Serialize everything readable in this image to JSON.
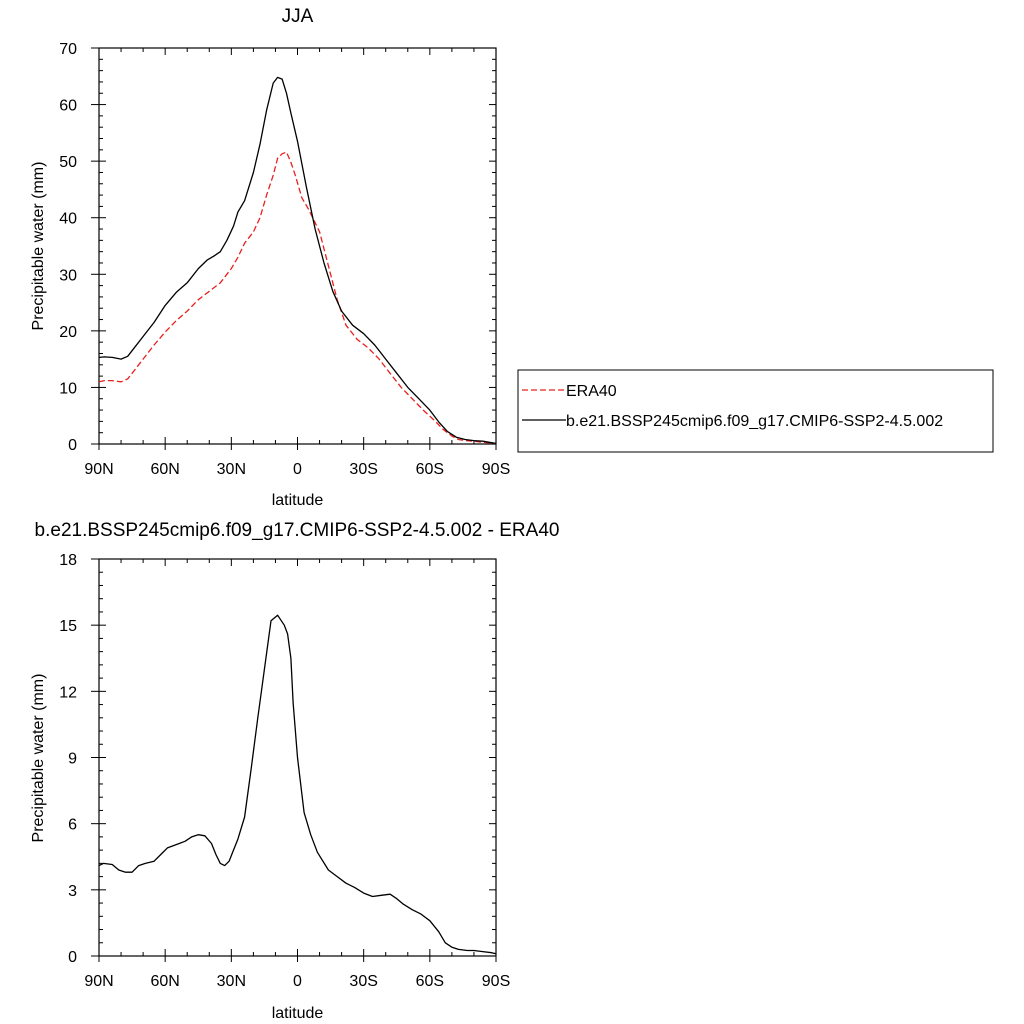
{
  "chart_data": [
    {
      "type": "line",
      "title": "JJA",
      "xlabel": "latitude",
      "ylabel": "Precipitable water (mm)",
      "xlim": [
        90,
        -90
      ],
      "ylim": [
        0,
        70
      ],
      "xticks": [
        90,
        60,
        30,
        0,
        -30,
        -60,
        -90
      ],
      "xtick_labels": [
        "90N",
        "60N",
        "30N",
        "0",
        "30S",
        "60S",
        "90S"
      ],
      "yticks": [
        0,
        10,
        20,
        30,
        40,
        50,
        60,
        70
      ],
      "ytick_labels": [
        "0",
        "10",
        "20",
        "30",
        "40",
        "50",
        "60",
        "70"
      ],
      "legend": {
        "placement": "right",
        "entries": [
          "ERA40",
          "b.e21.BSSP245cmip6.f09_g17.CMIP6-SSP2-4.5.002"
        ]
      },
      "series": [
        {
          "name": "ERA40",
          "color": "#e8201e",
          "dash": "dashed",
          "x": [
            90,
            87.5,
            84,
            80,
            77,
            74,
            70,
            65,
            60,
            55,
            50,
            45,
            40,
            35,
            30,
            27,
            24,
            20,
            17,
            14,
            11,
            9,
            7,
            5,
            3,
            1,
            -2,
            -5,
            -10,
            -14,
            -18,
            -22,
            -27,
            -32,
            -37,
            -42,
            -47,
            -52,
            -57,
            -62,
            -66,
            -70,
            -73,
            -76,
            -80,
            -84,
            -87,
            -90
          ],
          "y": [
            11,
            11.2,
            11.2,
            11,
            11.5,
            13,
            15,
            17.5,
            19.8,
            21.8,
            23.5,
            25.5,
            27,
            28.5,
            31,
            33,
            35.5,
            37.5,
            40,
            44,
            47.5,
            50.5,
            51.3,
            51.6,
            49.8,
            47.5,
            43.5,
            41.5,
            37.5,
            31.5,
            25.5,
            21,
            18.5,
            17,
            15,
            12.5,
            10,
            8,
            6,
            4.2,
            2.6,
            1.4,
            0.8,
            0.6,
            0.5,
            0.3,
            0.2,
            0.1
          ]
        },
        {
          "name": "b.e21.BSSP245cmip6.f09_g17.CMIP6-SSP2-4.5.002",
          "color": "#000000",
          "dash": "solid",
          "x": [
            90,
            87.5,
            84,
            80,
            77,
            74,
            70,
            65,
            60,
            55,
            50,
            45,
            41,
            38,
            35,
            32,
            29,
            27,
            24,
            20,
            17,
            14,
            11,
            9,
            7,
            5,
            3,
            0,
            -4,
            -8,
            -12,
            -16,
            -20,
            -25,
            -30,
            -35,
            -40,
            -45,
            -50,
            -55,
            -60,
            -64,
            -68,
            -72,
            -76,
            -80,
            -84,
            -87,
            -90
          ],
          "y": [
            15.3,
            15.4,
            15.3,
            15,
            15.5,
            17,
            19,
            21.5,
            24.5,
            26.8,
            28.5,
            31,
            32.5,
            33.2,
            34,
            36,
            38.5,
            41,
            43,
            48,
            53,
            59,
            63.8,
            64.8,
            64.5,
            62,
            58.5,
            53.5,
            45.5,
            38,
            32,
            27,
            23.5,
            21,
            19.5,
            17.5,
            15,
            12.5,
            10,
            8,
            6,
            3.9,
            2.2,
            1.2,
            0.8,
            0.6,
            0.5,
            0.3,
            0.1
          ]
        }
      ]
    },
    {
      "type": "line",
      "title": "b.e21.BSSP245cmip6.f09_g17.CMIP6-SSP2-4.5.002 - ERA40",
      "xlabel": "latitude",
      "ylabel": "Precipitable water (mm)",
      "xlim": [
        90,
        -90
      ],
      "ylim": [
        0,
        18
      ],
      "xticks": [
        90,
        60,
        30,
        0,
        -30,
        -60,
        -90
      ],
      "xtick_labels": [
        "90N",
        "60N",
        "30N",
        "0",
        "30S",
        "60S",
        "90S"
      ],
      "yticks": [
        0,
        3,
        6,
        9,
        12,
        15,
        18
      ],
      "ytick_labels": [
        "0",
        "3",
        "6",
        "9",
        "12",
        "15",
        "18"
      ],
      "series": [
        {
          "color": "#000000",
          "dash": "solid",
          "x": [
            90,
            88,
            84,
            81,
            78,
            75,
            72,
            69,
            65,
            62,
            59,
            55,
            51,
            48,
            45,
            42,
            39,
            37,
            35,
            33,
            31,
            29,
            27,
            24,
            21,
            18,
            15,
            12,
            9,
            6,
            4.5,
            3,
            2,
            0,
            -3,
            -6,
            -9,
            -14,
            -18,
            -22,
            -26,
            -30,
            -34,
            -38,
            -42,
            -45,
            -48,
            -52,
            -56,
            -60,
            -64,
            -67,
            -70,
            -73,
            -77,
            -80,
            -84,
            -88,
            -90
          ],
          "y": [
            4.1,
            4.2,
            4.15,
            3.9,
            3.8,
            3.8,
            4.1,
            4.2,
            4.3,
            4.6,
            4.9,
            5.05,
            5.2,
            5.4,
            5.5,
            5.45,
            5.1,
            4.6,
            4.2,
            4.1,
            4.3,
            4.8,
            5.3,
            6.3,
            8.5,
            10.8,
            13,
            15.2,
            15.45,
            15.0,
            14.6,
            13.5,
            11.5,
            9,
            6.5,
            5.5,
            4.7,
            3.9,
            3.6,
            3.3,
            3.1,
            2.85,
            2.7,
            2.75,
            2.8,
            2.6,
            2.35,
            2.1,
            1.9,
            1.6,
            1.1,
            0.6,
            0.4,
            0.3,
            0.25,
            0.25,
            0.2,
            0.15,
            0.1
          ]
        }
      ]
    }
  ]
}
